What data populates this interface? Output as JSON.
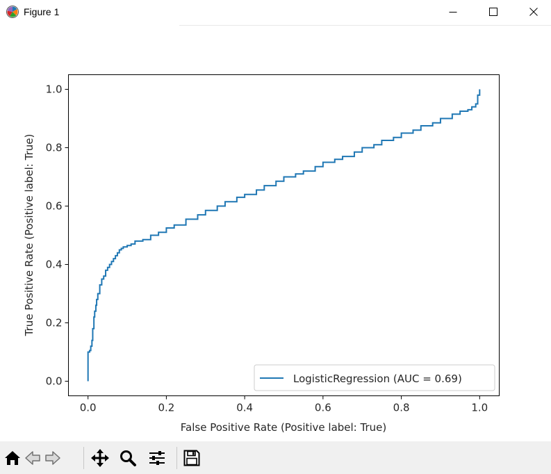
{
  "window": {
    "title": "Figure 1",
    "icon": "matplotlib-icon",
    "controls": [
      "minimize-icon",
      "maximize-icon",
      "close-icon"
    ]
  },
  "toolbar": {
    "buttons": [
      "home-icon",
      "back-icon",
      "forward-icon",
      "pan-icon",
      "zoom-icon",
      "configure-subplots-icon",
      "save-icon"
    ]
  },
  "colors": {
    "series": "#1f77b4",
    "axes": "#000000",
    "background": "#ffffff",
    "toolbar": "#f0f0f0"
  },
  "chart_data": {
    "type": "line",
    "title": "",
    "xlabel": "False Positive Rate (Positive label: True)",
    "ylabel": "True Positive Rate (Positive label: True)",
    "xlim": [
      -0.05,
      1.05
    ],
    "ylim": [
      -0.05,
      1.05
    ],
    "xticks": [
      0.0,
      0.2,
      0.4,
      0.6,
      0.8,
      1.0
    ],
    "xtick_labels": [
      "0.0",
      "0.2",
      "0.4",
      "0.6",
      "0.8",
      "1.0"
    ],
    "yticks": [
      0.0,
      0.2,
      0.4,
      0.6,
      0.8,
      1.0
    ],
    "ytick_labels": [
      "0.0",
      "0.2",
      "0.4",
      "0.6",
      "0.8",
      "1.0"
    ],
    "grid": false,
    "legend_position": "lower-right",
    "series": [
      {
        "name": "LogisticRegression (AUC = 0.69)",
        "color": "#1f77b4",
        "x": [
          0.0,
          0.0,
          0.004,
          0.007,
          0.01,
          0.012,
          0.015,
          0.017,
          0.02,
          0.022,
          0.025,
          0.03,
          0.035,
          0.04,
          0.045,
          0.05,
          0.055,
          0.06,
          0.065,
          0.07,
          0.075,
          0.08,
          0.085,
          0.09,
          0.1,
          0.11,
          0.12,
          0.14,
          0.16,
          0.18,
          0.2,
          0.22,
          0.25,
          0.28,
          0.3,
          0.33,
          0.35,
          0.38,
          0.4,
          0.43,
          0.45,
          0.48,
          0.5,
          0.53,
          0.55,
          0.58,
          0.6,
          0.63,
          0.65,
          0.68,
          0.7,
          0.73,
          0.75,
          0.78,
          0.8,
          0.83,
          0.85,
          0.88,
          0.9,
          0.93,
          0.95,
          0.97,
          0.98,
          0.99,
          0.995,
          1.0
        ],
        "y": [
          0.0,
          0.1,
          0.105,
          0.12,
          0.14,
          0.18,
          0.22,
          0.24,
          0.26,
          0.28,
          0.3,
          0.33,
          0.35,
          0.36,
          0.38,
          0.39,
          0.4,
          0.41,
          0.42,
          0.43,
          0.44,
          0.45,
          0.455,
          0.46,
          0.465,
          0.47,
          0.48,
          0.485,
          0.5,
          0.51,
          0.525,
          0.535,
          0.555,
          0.57,
          0.585,
          0.6,
          0.615,
          0.63,
          0.64,
          0.655,
          0.67,
          0.685,
          0.7,
          0.71,
          0.72,
          0.735,
          0.75,
          0.76,
          0.77,
          0.785,
          0.8,
          0.81,
          0.825,
          0.835,
          0.85,
          0.86,
          0.875,
          0.885,
          0.9,
          0.915,
          0.925,
          0.93,
          0.94,
          0.95,
          0.98,
          1.0
        ]
      }
    ]
  }
}
